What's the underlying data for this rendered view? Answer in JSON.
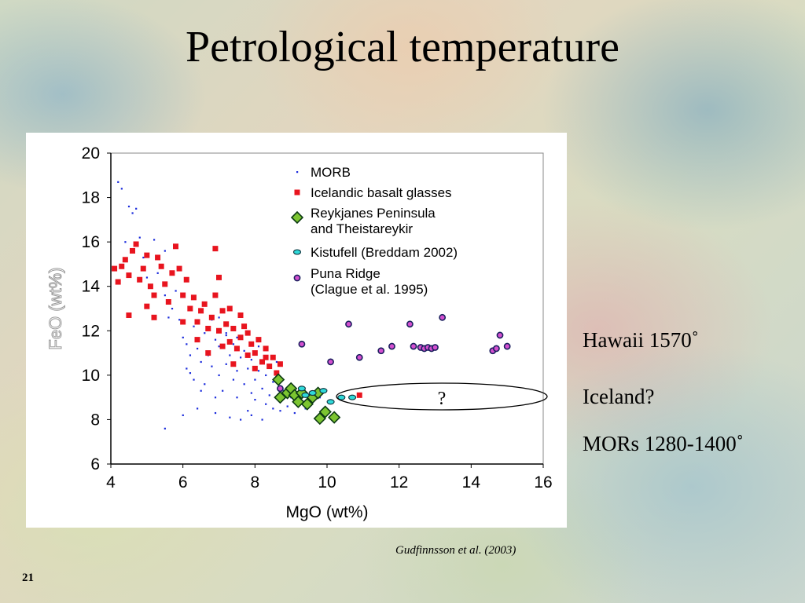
{
  "slide": {
    "title": "Petrological temperature",
    "citation": "Gudfinnsson et al. (2003)",
    "page_number": "21",
    "notes": {
      "hawaii": "Hawaii 1570˚",
      "iceland": "Iceland?",
      "mors": "MORs 1280-1400˚"
    },
    "callout_label": "?"
  },
  "colors": {
    "morb": "#1a2bdc",
    "icelandic": "#e8141e",
    "reykjanes_fill": "#7cc531",
    "reykjanes_edge": "#0c3a12",
    "kistufell_fill": "#2fd9d9",
    "puna_fill": "#d44fcf",
    "puna_edge": "#1b1f5e",
    "axis": "#000000"
  },
  "chart_data": {
    "type": "scatter",
    "title": "",
    "xlabel": "MgO (wt%)",
    "ylabel": "FeO (wt%)",
    "xlim": [
      4,
      16
    ],
    "ylim": [
      6,
      20
    ],
    "xticks": [
      4,
      6,
      8,
      10,
      12,
      14,
      16
    ],
    "yticks": [
      6,
      8,
      10,
      12,
      14,
      16,
      18,
      20
    ],
    "grid": false,
    "legend_position": "top-left",
    "series": [
      {
        "name": "MORB",
        "marker": "dot",
        "points": [
          [
            4.2,
            18.7
          ],
          [
            4.3,
            18.4
          ],
          [
            4.5,
            17.6
          ],
          [
            4.6,
            17.3
          ],
          [
            4.7,
            17.5
          ],
          [
            4.8,
            16.2
          ],
          [
            5.2,
            16.1
          ],
          [
            5.5,
            15.6
          ],
          [
            4.4,
            16.0
          ],
          [
            4.9,
            15.3
          ],
          [
            5.0,
            14.4
          ],
          [
            5.3,
            14.6
          ],
          [
            5.5,
            13.6
          ],
          [
            5.7,
            13.0
          ],
          [
            5.6,
            12.6
          ],
          [
            5.9,
            12.5
          ],
          [
            6.0,
            11.7
          ],
          [
            6.1,
            11.4
          ],
          [
            6.2,
            10.9
          ],
          [
            6.4,
            11.2
          ],
          [
            6.2,
            10.1
          ],
          [
            6.3,
            9.8
          ],
          [
            6.5,
            10.6
          ],
          [
            6.6,
            11.9
          ],
          [
            6.7,
            12.1
          ],
          [
            6.6,
            9.6
          ],
          [
            6.7,
            10.9
          ],
          [
            6.8,
            10.4
          ],
          [
            6.9,
            11.6
          ],
          [
            7.0,
            11.3
          ],
          [
            7.0,
            10.0
          ],
          [
            7.1,
            9.3
          ],
          [
            7.2,
            10.5
          ],
          [
            7.2,
            11.8
          ],
          [
            7.3,
            10.9
          ],
          [
            7.4,
            9.8
          ],
          [
            7.4,
            11.4
          ],
          [
            7.5,
            10.2
          ],
          [
            7.5,
            9.0
          ],
          [
            7.6,
            10.8
          ],
          [
            7.7,
            9.6
          ],
          [
            7.7,
            11.1
          ],
          [
            7.8,
            10.3
          ],
          [
            7.9,
            9.2
          ],
          [
            7.9,
            10.7
          ],
          [
            8.0,
            9.8
          ],
          [
            8.0,
            8.9
          ],
          [
            8.1,
            10.2
          ],
          [
            8.2,
            9.4
          ],
          [
            8.3,
            8.7
          ],
          [
            8.3,
            10.0
          ],
          [
            8.4,
            9.1
          ],
          [
            8.5,
            8.5
          ],
          [
            8.5,
            9.7
          ],
          [
            8.6,
            9.0
          ],
          [
            8.7,
            8.4
          ],
          [
            8.8,
            9.3
          ],
          [
            8.9,
            8.6
          ],
          [
            9.0,
            9.0
          ],
          [
            9.1,
            8.3
          ],
          [
            9.2,
            8.8
          ],
          [
            9.3,
            9.4
          ],
          [
            9.4,
            8.5
          ],
          [
            9.5,
            9.1
          ],
          [
            9.6,
            8.8
          ],
          [
            9.8,
            9.0
          ],
          [
            6.0,
            8.2
          ],
          [
            6.4,
            8.5
          ],
          [
            6.9,
            8.3
          ],
          [
            7.3,
            8.1
          ],
          [
            7.6,
            8.0
          ],
          [
            7.9,
            8.2
          ],
          [
            8.2,
            8.0
          ],
          [
            5.5,
            7.6
          ],
          [
            7.2,
            11.9
          ],
          [
            6.8,
            12.5
          ],
          [
            6.3,
            12.2
          ],
          [
            5.8,
            13.8
          ],
          [
            6.9,
            9.0
          ],
          [
            7.5,
            11.7
          ],
          [
            8.1,
            11.3
          ],
          [
            8.6,
            10.6
          ],
          [
            7.0,
            12.6
          ],
          [
            6.5,
            9.3
          ],
          [
            6.1,
            10.3
          ],
          [
            7.8,
            8.4
          ]
        ]
      },
      {
        "name": "Icelandic basalt glasses",
        "marker": "square",
        "points": [
          [
            4.1,
            14.8
          ],
          [
            4.2,
            14.2
          ],
          [
            4.3,
            14.9
          ],
          [
            4.4,
            15.2
          ],
          [
            4.5,
            14.5
          ],
          [
            4.6,
            15.6
          ],
          [
            4.7,
            15.9
          ],
          [
            4.8,
            14.3
          ],
          [
            4.9,
            14.8
          ],
          [
            5.0,
            15.4
          ],
          [
            5.1,
            14.0
          ],
          [
            5.2,
            13.6
          ],
          [
            5.3,
            15.3
          ],
          [
            5.4,
            14.9
          ],
          [
            5.5,
            14.1
          ],
          [
            5.6,
            13.3
          ],
          [
            5.7,
            14.6
          ],
          [
            5.8,
            15.8
          ],
          [
            5.9,
            14.8
          ],
          [
            6.0,
            13.6
          ],
          [
            6.1,
            14.3
          ],
          [
            6.2,
            13.0
          ],
          [
            6.3,
            13.5
          ],
          [
            6.4,
            12.4
          ],
          [
            6.5,
            12.9
          ],
          [
            6.6,
            13.2
          ],
          [
            6.7,
            12.1
          ],
          [
            6.8,
            12.6
          ],
          [
            6.9,
            13.6
          ],
          [
            7.0,
            12.0
          ],
          [
            7.1,
            12.9
          ],
          [
            7.2,
            12.3
          ],
          [
            7.3,
            11.5
          ],
          [
            7.4,
            12.1
          ],
          [
            7.5,
            11.2
          ],
          [
            7.6,
            11.7
          ],
          [
            7.7,
            12.2
          ],
          [
            7.8,
            10.9
          ],
          [
            7.9,
            11.4
          ],
          [
            8.0,
            11.0
          ],
          [
            8.1,
            11.6
          ],
          [
            8.2,
            10.6
          ],
          [
            8.3,
            11.2
          ],
          [
            8.4,
            10.4
          ],
          [
            8.5,
            10.8
          ],
          [
            8.6,
            10.1
          ],
          [
            8.7,
            10.5
          ],
          [
            4.5,
            12.7
          ],
          [
            5.2,
            12.6
          ],
          [
            6.9,
            15.7
          ],
          [
            6.0,
            12.4
          ],
          [
            7.3,
            13.0
          ],
          [
            7.6,
            12.7
          ],
          [
            6.4,
            11.6
          ],
          [
            5.0,
            13.1
          ],
          [
            7.0,
            14.4
          ],
          [
            8.0,
            10.3
          ],
          [
            8.3,
            10.8
          ],
          [
            7.4,
            10.5
          ],
          [
            6.7,
            11.0
          ],
          [
            10.9,
            9.1
          ],
          [
            7.1,
            11.3
          ],
          [
            7.8,
            11.9
          ]
        ]
      },
      {
        "name": "Reykjanes Peninsula and Theistareykir",
        "marker": "diamond",
        "points": [
          [
            8.65,
            9.8
          ],
          [
            8.7,
            9.0
          ],
          [
            8.9,
            9.2
          ],
          [
            9.0,
            9.4
          ],
          [
            9.1,
            9.1
          ],
          [
            9.2,
            8.8
          ],
          [
            9.3,
            9.2
          ],
          [
            9.45,
            8.7
          ],
          [
            9.6,
            9.0
          ],
          [
            9.75,
            9.2
          ],
          [
            9.8,
            8.05
          ],
          [
            9.95,
            8.35
          ],
          [
            10.2,
            8.1
          ]
        ]
      },
      {
        "name": "Kistufell (Breddam 2002)",
        "marker": "ellipse",
        "points": [
          [
            9.3,
            9.4
          ],
          [
            9.6,
            9.2
          ],
          [
            9.9,
            9.3
          ],
          [
            10.1,
            8.8
          ],
          [
            10.4,
            9.0
          ],
          [
            10.7,
            9.0
          ],
          [
            9.4,
            9.1
          ]
        ]
      },
      {
        "name": "Puna Ridge (Clague et al. 1995)",
        "marker": "circle",
        "points": [
          [
            10.1,
            10.6
          ],
          [
            10.6,
            12.3
          ],
          [
            10.9,
            10.8
          ],
          [
            11.5,
            11.1
          ],
          [
            11.8,
            11.3
          ],
          [
            12.3,
            12.3
          ],
          [
            12.4,
            11.3
          ],
          [
            12.6,
            11.25
          ],
          [
            12.7,
            11.2
          ],
          [
            12.8,
            11.25
          ],
          [
            12.9,
            11.2
          ],
          [
            13.0,
            11.25
          ],
          [
            13.2,
            12.6
          ],
          [
            14.6,
            11.1
          ],
          [
            14.7,
            11.2
          ],
          [
            14.8,
            11.8
          ],
          [
            15.0,
            11.3
          ],
          [
            9.3,
            11.4
          ],
          [
            8.7,
            9.4
          ]
        ]
      }
    ]
  }
}
